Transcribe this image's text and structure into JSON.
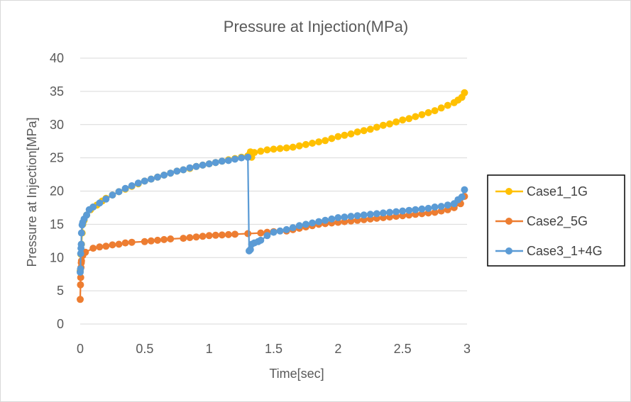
{
  "chart_data": {
    "type": "line",
    "title": "Pressure at Injection(MPa)",
    "xlabel": "Time[sec]",
    "ylabel": "Pressure at Injection[MPa]",
    "xlim": [
      0,
      3
    ],
    "ylim": [
      0,
      40
    ],
    "x_ticks": [
      "0",
      "0.5",
      "1",
      "1.5",
      "2",
      "2.5",
      "3"
    ],
    "y_ticks": [
      "0",
      "5",
      "10",
      "15",
      "20",
      "25",
      "30",
      "35",
      "40"
    ],
    "grid": "horizontal",
    "legend_position": "right",
    "series": [
      {
        "name": "Case1_1G",
        "color": "#ffc000",
        "x": [
          0,
          0.005,
          0.01,
          0.015,
          0.02,
          0.03,
          0.05,
          0.08,
          0.1,
          0.13,
          0.17,
          0.2,
          0.25,
          0.3,
          0.35,
          0.4,
          0.45,
          0.5,
          0.55,
          0.6,
          0.65,
          0.7,
          0.75,
          0.8,
          0.85,
          0.9,
          0.95,
          1.0,
          1.05,
          1.1,
          1.15,
          1.2,
          1.25,
          1.3,
          1.32,
          1.33,
          1.35,
          1.4,
          1.45,
          1.5,
          1.55,
          1.6,
          1.65,
          1.7,
          1.75,
          1.8,
          1.85,
          1.9,
          1.95,
          2.0,
          2.05,
          2.1,
          2.15,
          2.2,
          2.25,
          2.3,
          2.35,
          2.4,
          2.45,
          2.5,
          2.55,
          2.6,
          2.65,
          2.7,
          2.75,
          2.8,
          2.85,
          2.9,
          2.93,
          2.96,
          2.98
        ],
        "values": [
          8.0,
          10.5,
          12.0,
          13.7,
          15.0,
          15.6,
          16.4,
          17.2,
          17.6,
          17.9,
          18.5,
          18.9,
          19.4,
          19.9,
          20.3,
          20.7,
          21.1,
          21.5,
          21.8,
          22.1,
          22.4,
          22.7,
          23.0,
          23.2,
          23.4,
          23.7,
          23.9,
          24.1,
          24.3,
          24.5,
          24.7,
          24.9,
          25.1,
          25.3,
          25.9,
          25.1,
          25.8,
          26.0,
          26.2,
          26.3,
          26.4,
          26.5,
          26.6,
          26.8,
          27.0,
          27.2,
          27.4,
          27.6,
          27.9,
          28.2,
          28.4,
          28.6,
          28.9,
          29.1,
          29.3,
          29.6,
          29.9,
          30.1,
          30.4,
          30.7,
          30.9,
          31.2,
          31.5,
          31.8,
          32.1,
          32.5,
          32.9,
          33.3,
          33.7,
          34.1,
          34.8
        ]
      },
      {
        "name": "Case2_5G",
        "color": "#ed7d31",
        "x": [
          0,
          0.002,
          0.004,
          0.006,
          0.008,
          0.01,
          0.02,
          0.04,
          0.1,
          0.15,
          0.2,
          0.25,
          0.3,
          0.35,
          0.4,
          0.5,
          0.55,
          0.6,
          0.65,
          0.7,
          0.8,
          0.85,
          0.9,
          0.95,
          1.0,
          1.05,
          1.1,
          1.15,
          1.2,
          1.3,
          1.4,
          1.45,
          1.5,
          1.6,
          1.65,
          1.7,
          1.75,
          1.8,
          1.85,
          1.9,
          1.95,
          2.0,
          2.05,
          2.1,
          2.15,
          2.2,
          2.25,
          2.3,
          2.35,
          2.4,
          2.45,
          2.5,
          2.55,
          2.6,
          2.65,
          2.7,
          2.75,
          2.8,
          2.85,
          2.9,
          2.95,
          2.98
        ],
        "values": [
          3.7,
          5.9,
          7.0,
          8.5,
          9.2,
          9.5,
          10.3,
          10.8,
          11.4,
          11.6,
          11.7,
          11.9,
          12.0,
          12.2,
          12.3,
          12.4,
          12.5,
          12.6,
          12.7,
          12.8,
          12.9,
          13.0,
          13.1,
          13.2,
          13.3,
          13.35,
          13.4,
          13.45,
          13.5,
          13.6,
          13.7,
          13.8,
          13.9,
          14.0,
          14.2,
          14.4,
          14.6,
          14.8,
          15.0,
          15.1,
          15.2,
          15.3,
          15.4,
          15.5,
          15.6,
          15.7,
          15.8,
          15.9,
          16.0,
          16.1,
          16.2,
          16.3,
          16.4,
          16.5,
          16.6,
          16.7,
          16.8,
          17.0,
          17.2,
          17.5,
          18.1,
          19.2
        ]
      },
      {
        "name": "Case3_1+4G",
        "color": "#5b9bd5",
        "x": [
          0,
          0.002,
          0.004,
          0.006,
          0.008,
          0.01,
          0.015,
          0.02,
          0.03,
          0.05,
          0.07,
          0.1,
          0.15,
          0.2,
          0.25,
          0.3,
          0.35,
          0.4,
          0.45,
          0.5,
          0.55,
          0.6,
          0.65,
          0.7,
          0.75,
          0.8,
          0.85,
          0.9,
          0.95,
          1.0,
          1.05,
          1.1,
          1.15,
          1.2,
          1.25,
          1.3,
          1.31,
          1.32,
          1.33,
          1.35,
          1.38,
          1.4,
          1.45,
          1.5,
          1.55,
          1.6,
          1.65,
          1.7,
          1.75,
          1.8,
          1.85,
          1.9,
          1.95,
          2.0,
          2.05,
          2.1,
          2.15,
          2.2,
          2.25,
          2.3,
          2.35,
          2.4,
          2.45,
          2.5,
          2.55,
          2.6,
          2.65,
          2.7,
          2.75,
          2.8,
          2.85,
          2.9,
          2.93,
          2.96,
          2.98
        ],
        "values": [
          7.8,
          8.3,
          10.6,
          11.4,
          12.0,
          13.7,
          14.9,
          15.3,
          15.8,
          16.4,
          17.2,
          17.6,
          18.2,
          18.8,
          19.4,
          19.9,
          20.4,
          20.8,
          21.2,
          21.5,
          21.8,
          22.1,
          22.4,
          22.7,
          23.0,
          23.2,
          23.5,
          23.7,
          23.9,
          24.1,
          24.3,
          24.5,
          24.6,
          24.8,
          25.0,
          25.1,
          11.0,
          11.2,
          12.0,
          12.2,
          12.4,
          12.6,
          13.3,
          13.8,
          14.0,
          14.2,
          14.5,
          14.8,
          15.0,
          15.2,
          15.4,
          15.6,
          15.8,
          16.0,
          16.1,
          16.2,
          16.3,
          16.4,
          16.5,
          16.6,
          16.7,
          16.8,
          16.9,
          17.0,
          17.1,
          17.2,
          17.3,
          17.4,
          17.6,
          17.7,
          17.9,
          18.1,
          18.7,
          19.1,
          20.2
        ]
      }
    ]
  }
}
